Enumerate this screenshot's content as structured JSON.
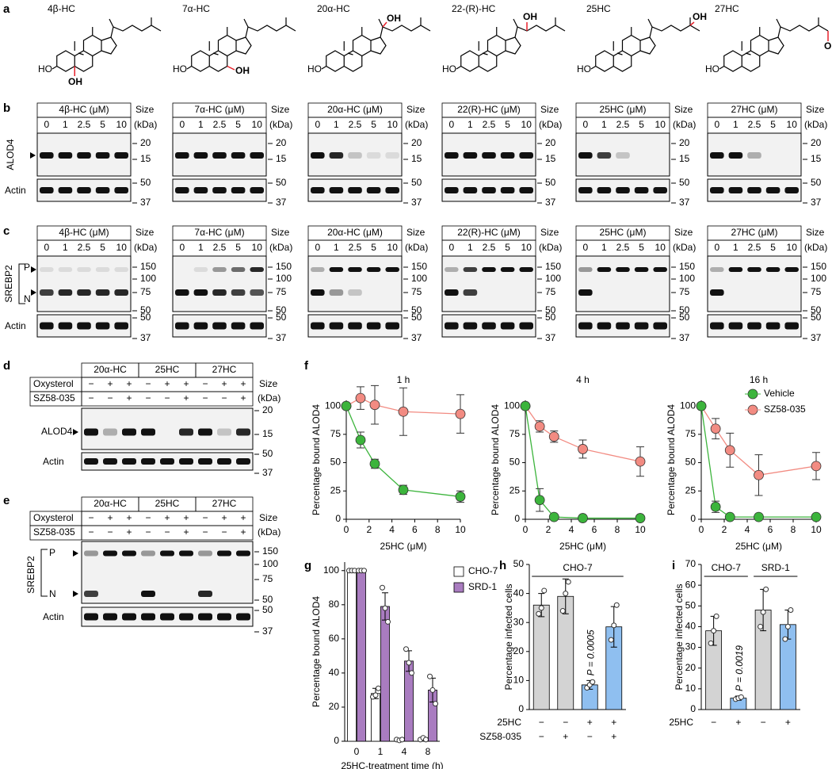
{
  "panel_labels": [
    "a",
    "b",
    "c",
    "d",
    "e",
    "f",
    "g",
    "h",
    "i"
  ],
  "structures": [
    {
      "name": "4β-HC",
      "ho": "HO",
      "oh": "OH"
    },
    {
      "name": "7α-HC",
      "ho": "HO",
      "oh": "OH"
    },
    {
      "name": "20α-HC",
      "ho": "HO",
      "oh": "OH"
    },
    {
      "name": "22-(R)-HC",
      "ho": "HO",
      "oh": "OH"
    },
    {
      "name": "25HC",
      "ho": "HO",
      "oh": "OH"
    },
    {
      "name": "27HC",
      "ho": "HO",
      "oh": "OH"
    }
  ],
  "blots_b": {
    "headers": [
      "4β-HC (μM)",
      "7α-HC (μM)",
      "20α-HC (μM)",
      "22(R)-HC (μM)",
      "25HC (μM)",
      "27HC (μM)"
    ],
    "concentrations": [
      "0",
      "1",
      "2.5",
      "5",
      "10"
    ],
    "size_label": "Size",
    "size_unit": "(kDa)",
    "target": "ALOD4",
    "target_markers": [
      "20",
      "15"
    ],
    "loading": "Actin",
    "loading_markers": [
      "50",
      "37"
    ]
  },
  "blots_c": {
    "headers": [
      "4β-HC (μM)",
      "7α-HC (μM)",
      "20α-HC (μM)",
      "22(R)-HC (μM)",
      "25HC (μM)",
      "27HC (μM)"
    ],
    "concentrations": [
      "0",
      "1",
      "2.5",
      "5",
      "10"
    ],
    "size_label": "Size",
    "size_unit": "(kDa)",
    "target": "SREBP2",
    "precursor": "P",
    "nuclear": "N",
    "target_markers": [
      "150",
      "100",
      "75",
      "50"
    ],
    "loading": "Actin",
    "loading_markers": [
      "50",
      "37"
    ]
  },
  "blots_d": {
    "groups": [
      "20α-HC",
      "25HC",
      "27HC"
    ],
    "rows": [
      {
        "label": "Oxysterol",
        "signs": [
          "−",
          "+",
          "+",
          "−",
          "+",
          "+",
          "−",
          "+",
          "+"
        ]
      },
      {
        "label": "SZ58-035",
        "signs": [
          "−",
          "−",
          "+",
          "−",
          "−",
          "+",
          "−",
          "−",
          "+"
        ]
      }
    ],
    "size_label": "Size",
    "size_unit": "(kDa)",
    "target": "ALOD4",
    "target_markers": [
      "20",
      "15"
    ],
    "loading": "Actin",
    "loading_markers": [
      "50",
      "37"
    ]
  },
  "blots_e": {
    "groups": [
      "20α-HC",
      "25HC",
      "27HC"
    ],
    "rows": [
      {
        "label": "Oxysterol",
        "signs": [
          "−",
          "+",
          "+",
          "−",
          "+",
          "+",
          "−",
          "+",
          "+"
        ]
      },
      {
        "label": "SZ58-035",
        "signs": [
          "−",
          "−",
          "+",
          "−",
          "−",
          "+",
          "−",
          "−",
          "+"
        ]
      }
    ],
    "size_label": "Size",
    "size_unit": "(kDa)",
    "target": "SREBP2",
    "precursor": "P",
    "nuclear": "N",
    "target_markers": [
      "150",
      "100",
      "75",
      "50"
    ],
    "loading": "Actin",
    "loading_markers": [
      "50",
      "37"
    ]
  },
  "chart_data": [
    {
      "type": "line",
      "title": "1 h",
      "x_label": "25HC (μM)",
      "y_label": "Percentage bound ALOD4",
      "x": [
        0,
        1.25,
        2.5,
        5,
        10
      ],
      "xlim": [
        0,
        10
      ],
      "xticks": [
        0,
        2,
        4,
        6,
        8,
        10
      ],
      "ylim": [
        0,
        105
      ],
      "yticks": [
        0,
        25,
        50,
        75,
        100
      ],
      "series": [
        {
          "color": "#3cb43c",
          "values": [
            100,
            70,
            49,
            26,
            20
          ],
          "errors": [
            0,
            7,
            4,
            4,
            5
          ]
        },
        {
          "color": "#f28b82",
          "values": [
            100,
            107,
            101,
            95,
            93
          ],
          "errors": [
            0,
            10,
            17,
            21,
            17
          ]
        }
      ]
    },
    {
      "type": "line",
      "title": "4 h",
      "x_label": "25HC (μM)",
      "y_label": "Percentage bound ALOD4",
      "x": [
        0,
        1.25,
        2.5,
        5,
        10
      ],
      "xlim": [
        0,
        10
      ],
      "xticks": [
        0,
        2,
        4,
        6,
        8,
        10
      ],
      "ylim": [
        0,
        105
      ],
      "yticks": [
        0,
        25,
        50,
        75,
        100
      ],
      "series": [
        {
          "color": "#3cb43c",
          "values": [
            100,
            17,
            2,
            1,
            1
          ],
          "errors": [
            0,
            10,
            2,
            0,
            0
          ]
        },
        {
          "color": "#f28b82",
          "values": [
            100,
            82,
            73,
            62,
            51
          ],
          "errors": [
            0,
            5,
            5,
            8,
            13
          ]
        }
      ]
    },
    {
      "type": "line",
      "title": "16 h",
      "x_label": "25HC (μM)",
      "y_label": "Percentage bound ALOD4",
      "x": [
        0,
        1.25,
        2.5,
        5,
        10
      ],
      "xlim": [
        0,
        10
      ],
      "xticks": [
        0,
        2,
        4,
        6,
        8,
        10
      ],
      "ylim": [
        0,
        105
      ],
      "yticks": [
        0,
        25,
        50,
        75,
        100
      ],
      "legend": "upper right",
      "series": [
        {
          "name": "Vehicle",
          "color": "#3cb43c",
          "values": [
            100,
            11,
            2,
            2,
            2
          ],
          "errors": [
            0,
            5,
            0,
            0,
            0
          ]
        },
        {
          "name": "SZ58-035",
          "color": "#f28b82",
          "values": [
            100,
            80,
            61,
            39,
            47
          ],
          "errors": [
            0,
            9,
            15,
            18,
            12
          ]
        }
      ]
    },
    {
      "type": "bar",
      "x_label": "25HC-treatment time (h)",
      "y_label": "Percentage bound ALOD4",
      "categories": [
        "0",
        "1",
        "4",
        "8"
      ],
      "ylim": [
        0,
        105
      ],
      "yticks": [
        0,
        20,
        40,
        60,
        80,
        100
      ],
      "legend": "right",
      "series": [
        {
          "name": "CHO-7",
          "color": "#ffffff",
          "values": [
            100,
            28,
            1,
            1
          ],
          "errors": [
            0,
            3,
            0.5,
            0.5
          ],
          "points": [
            [
              100,
              100,
              100
            ],
            [
              26,
              27,
              31
            ],
            [
              1,
              0.5,
              1
            ],
            [
              1,
              2,
              1
            ]
          ]
        },
        {
          "name": "SRD-1",
          "color": "#a97cc0",
          "values": [
            100,
            79,
            47,
            30
          ],
          "errors": [
            0,
            8,
            6,
            7
          ],
          "points": [
            [
              100,
              100,
              100
            ],
            [
              90,
              78,
              70
            ],
            [
              54,
              46,
              40
            ],
            [
              38,
              30,
              22
            ]
          ]
        }
      ]
    },
    {
      "type": "bar",
      "y_label": "Percentage infected cells",
      "ylim": [
        0,
        50
      ],
      "yticks": [
        0,
        10,
        20,
        30,
        40,
        50
      ],
      "groups": [
        "CHO-7"
      ],
      "rows": [
        {
          "label": "25HC",
          "signs": [
            "−",
            "−",
            "+",
            "+"
          ]
        },
        {
          "label": "SZ58-035",
          "signs": [
            "−",
            "+",
            "−",
            "+"
          ]
        }
      ],
      "colors": [
        "#d3d3d3",
        "#d3d3d3",
        "#8fbff0",
        "#8fbff0"
      ],
      "values": [
        36,
        39,
        8.5,
        28.5
      ],
      "errors": [
        4,
        6,
        1.5,
        7
      ],
      "points": [
        [
          33,
          35,
          41
        ],
        [
          34,
          40,
          44
        ],
        [
          7.5,
          8.5,
          9.5
        ],
        [
          24,
          29,
          36
        ]
      ],
      "annotation": "P = 0.0005"
    },
    {
      "type": "bar",
      "y_label": "Percentage infected cells",
      "ylim": [
        0,
        70
      ],
      "yticks": [
        0,
        10,
        20,
        30,
        40,
        50,
        60,
        70
      ],
      "groups": [
        "CHO-7",
        "SRD-1"
      ],
      "rows": [
        {
          "label": "25HC",
          "signs": [
            "−",
            "+",
            "−",
            "+"
          ]
        }
      ],
      "colors": [
        "#d3d3d3",
        "#8fbff0",
        "#d3d3d3",
        "#8fbff0"
      ],
      "values": [
        38,
        5.5,
        48,
        41
      ],
      "errors": [
        7,
        1,
        10,
        7
      ],
      "points": [
        [
          32,
          38,
          45
        ],
        [
          5,
          5.5,
          6
        ],
        [
          40,
          47,
          58
        ],
        [
          34,
          40,
          48
        ]
      ],
      "annotation": "P = 0.0019"
    }
  ]
}
